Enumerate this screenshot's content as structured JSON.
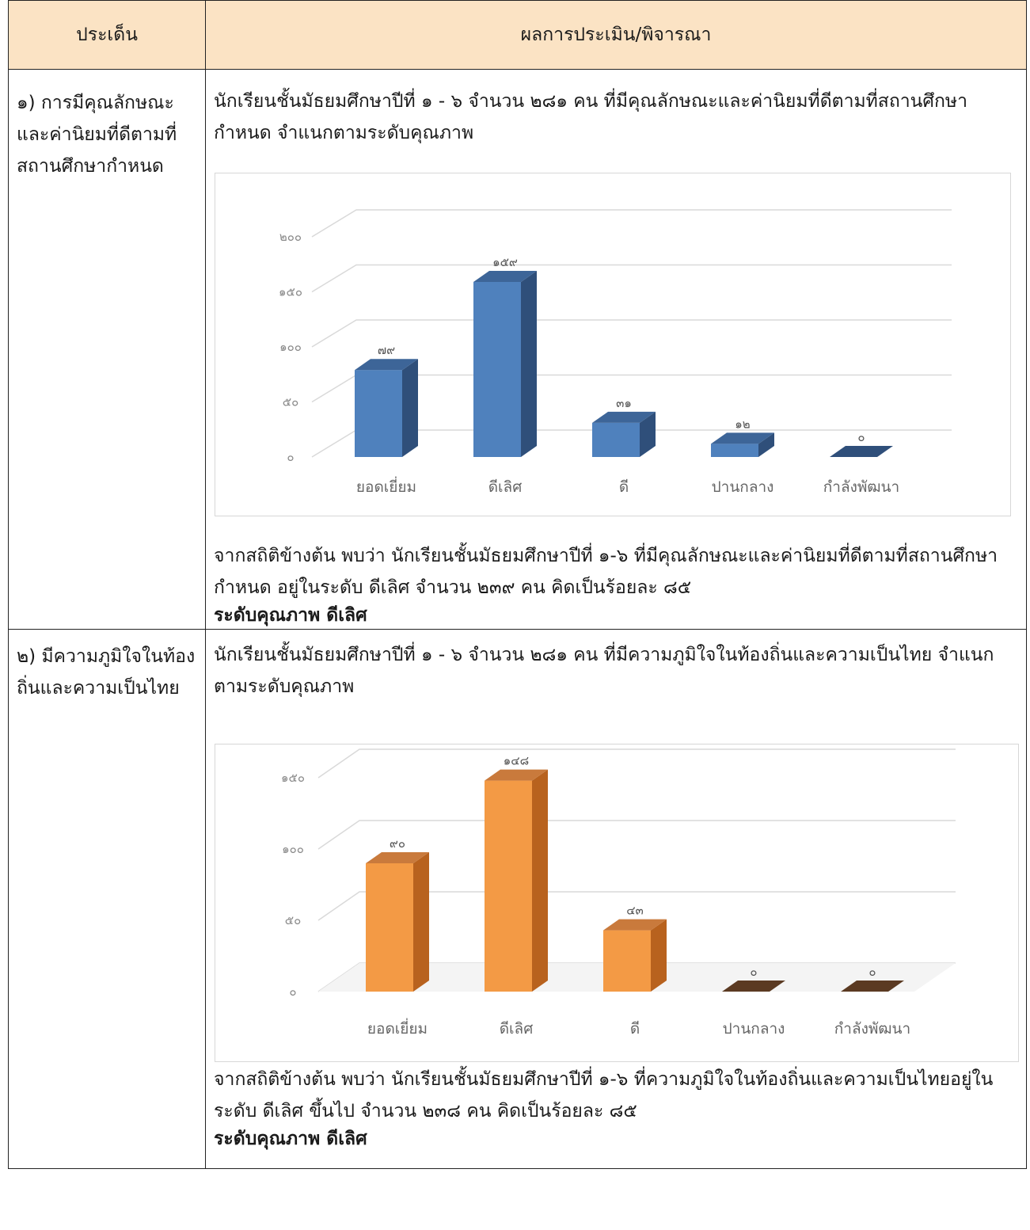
{
  "table": {
    "header": {
      "col1": "ประเด็น",
      "col2": "ผลการประเมิน/พิจารณา"
    }
  },
  "section1": {
    "topic": "๑) การมีคุณลักษณะและค่านิยมที่ดีตามที่สถานศึกษากำหนด",
    "intro": "นักเรียนชั้นมัธยมศึกษาปีที่ ๑ - ๖ จำนวน ๒๘๑ คน ที่มีคุณลักษณะและค่านิยมที่ดีตามที่สถานศึกษากำหนด จำแนกตามระดับคุณภาพ",
    "summary": "จากสถิติข้างต้น พบว่า นักเรียนชั้นมัธยมศึกษาปีที่ ๑-๖ ที่มีคุณลักษณะและค่านิยมที่ดีตามที่สถานศึกษากำหนด อยู่ในระดับ ดีเลิศ จำนวน ๒๓๙ คน คิดเป็นร้อยละ ๘๕",
    "quality": "ระดับคุณภาพ ดีเลิศ"
  },
  "section2": {
    "topic": "๒) มีความภูมิใจในท้องถิ่นและความเป็นไทย",
    "intro": "นักเรียนชั้นมัธยมศึกษาปีที่ ๑ - ๖ จำนวน ๒๘๑ คน ที่มีความภูมิใจในท้องถิ่นและความเป็นไทย จำแนกตามระดับคุณภาพ",
    "summary": "จากสถิติข้างต้น พบว่า นักเรียนชั้นมัธยมศึกษาปีที่ ๑-๖ ที่ความภูมิใจในท้องถิ่นและความเป็นไทยอยู่ในระดับ ดีเลิศ ขึ้นไป จำนวน ๒๓๘ คน คิดเป็นร้อยละ ๘๕",
    "quality": "ระดับคุณภาพ ดีเลิศ"
  },
  "chart_data": [
    {
      "type": "bar",
      "categories": [
        "ยอดเยี่ยม",
        "ดีเลิศ",
        "ดี",
        "ปานกลาง",
        "กำลังพัฒนา"
      ],
      "values": [
        79,
        159,
        31,
        12,
        0
      ],
      "value_labels": [
        "๗๙",
        "๑๕๙",
        "๓๑",
        "๑๒",
        "๐"
      ],
      "yticks": [
        0,
        50,
        100,
        150,
        200
      ],
      "ytick_labels": [
        "๐",
        "๕๐",
        "๑๐๐",
        "๑๕๐",
        "๒๐๐"
      ],
      "ylim": [
        0,
        200
      ],
      "grid": true,
      "legend": "none",
      "style": "3d",
      "colors": {
        "front": "#4f81bd",
        "side": "#2f4f7a",
        "top": "#3d6598"
      }
    },
    {
      "type": "bar",
      "categories": [
        "ยอดเยี่ยม",
        "ดีเลิศ",
        "ดี",
        "ปานกลาง",
        "กำลังพัฒนา"
      ],
      "values": [
        90,
        148,
        43,
        0,
        0
      ],
      "value_labels": [
        "๙๐",
        "๑๔๘",
        "๔๓",
        "๐",
        "๐"
      ],
      "yticks": [
        0,
        50,
        100,
        150
      ],
      "ytick_labels": [
        "๐",
        "๕๐",
        "๑๐๐",
        "๑๕๐"
      ],
      "ylim": [
        0,
        150
      ],
      "grid": true,
      "legend": "none",
      "style": "3d",
      "colors": {
        "front": "#f39a45",
        "side": "#b8621e",
        "top": "#c97a3c",
        "zero": "#5b3a22"
      }
    }
  ]
}
